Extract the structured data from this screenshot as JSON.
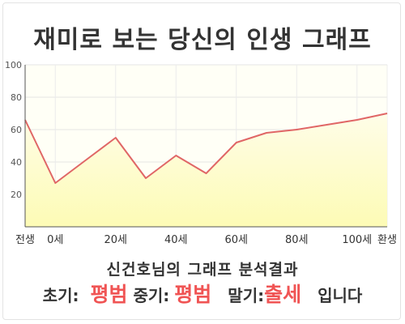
{
  "title": "재미로 보는 당신의 인생 그래프",
  "subtitle": "신건호님의 그래프 분석결과",
  "result": {
    "early_label": "초기:",
    "early_value": "평범",
    "middle_label": "중기:",
    "middle_value": "평범",
    "late_label": "말기:",
    "late_value": "출세",
    "suffix": "입니다",
    "highlight_color": "#f05454"
  },
  "chart_data": {
    "type": "area",
    "x": [
      "전생",
      "0세",
      "10세",
      "20세",
      "30세",
      "40세",
      "50세",
      "60세",
      "70세",
      "80세",
      "90세",
      "100세",
      "환생"
    ],
    "values": [
      66,
      27,
      41,
      55,
      30,
      44,
      33,
      52,
      58,
      60,
      63,
      66,
      70
    ],
    "x_tick_labels": [
      "전생",
      "0세",
      "20세",
      "40세",
      "60세",
      "80세",
      "100세",
      "환생"
    ],
    "x_tick_index": [
      0,
      1,
      3,
      5,
      7,
      9,
      11,
      12
    ],
    "y_tick_labels": [
      "20",
      "40",
      "60",
      "80",
      "100"
    ],
    "ylim": [
      0,
      100
    ],
    "line_color": "#e06666",
    "fill_top_color": "#fefde8",
    "fill_bottom_color": "#fdfbb5",
    "plot_background": "#fffff6",
    "grid": true,
    "legend": false
  }
}
